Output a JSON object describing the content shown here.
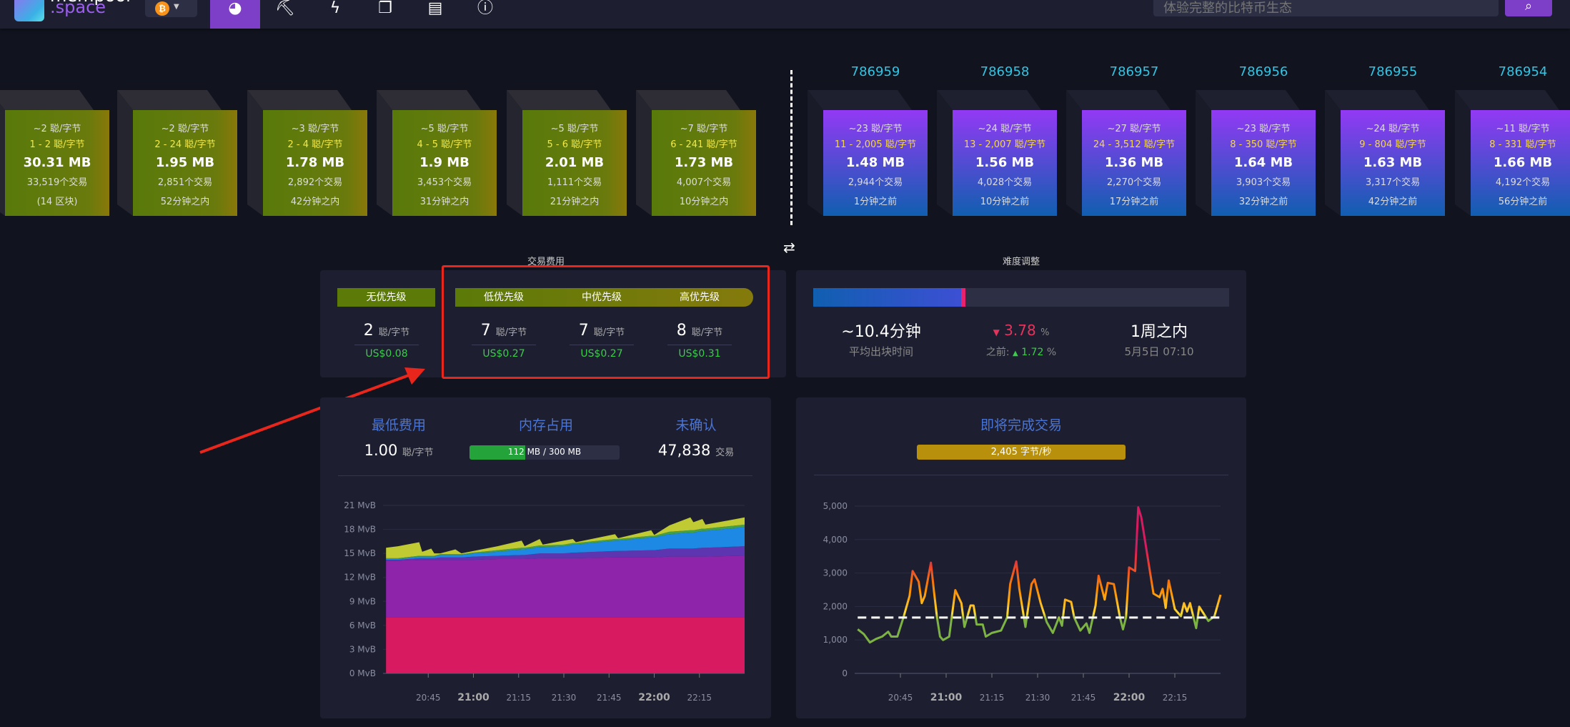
{
  "header": {
    "logo_top": "mempool",
    "logo_text": ".space",
    "network_icon": "bitcoin-icon",
    "nav": [
      {
        "icon": "dashboard-icon",
        "active": true
      },
      {
        "icon": "mining-icon"
      },
      {
        "icon": "lightning-icon"
      },
      {
        "icon": "blocks-icon"
      },
      {
        "icon": "docs-icon"
      },
      {
        "icon": "info-icon"
      }
    ],
    "search_placeholder": "体验完整的比特币生态",
    "search_icon": "search-icon"
  },
  "mempool_blocks": [
    {
      "median": "~2 聪/字节",
      "range": "1 - 2 聪/字节",
      "size": "30.31 MB",
      "txs": "33,519个交易",
      "eta": "(14 区块)"
    },
    {
      "median": "~2 聪/字节",
      "range": "2 - 24 聪/字节",
      "size": "1.95 MB",
      "txs": "2,851个交易",
      "eta": "52分钟之内"
    },
    {
      "median": "~3 聪/字节",
      "range": "2 - 4 聪/字节",
      "size": "1.78 MB",
      "txs": "2,892个交易",
      "eta": "42分钟之内"
    },
    {
      "median": "~5 聪/字节",
      "range": "4 - 5 聪/字节",
      "size": "1.9 MB",
      "txs": "3,453个交易",
      "eta": "31分钟之内"
    },
    {
      "median": "~5 聪/字节",
      "range": "5 - 6 聪/字节",
      "size": "2.01 MB",
      "txs": "1,111个交易",
      "eta": "21分钟之内"
    },
    {
      "median": "~7 聪/字节",
      "range": "6 - 241 聪/字节",
      "size": "1.73 MB",
      "txs": "4,007个交易",
      "eta": "10分钟之内"
    }
  ],
  "blocks": [
    {
      "height": "786959",
      "median": "~23 聪/字节",
      "range": "11 - 2,005 聪/字节",
      "size": "1.48 MB",
      "txs": "2,944个交易",
      "age": "1分钟之前"
    },
    {
      "height": "786958",
      "median": "~24 聪/字节",
      "range": "13 - 2,007 聪/字节",
      "size": "1.56 MB",
      "txs": "4,028个交易",
      "age": "10分钟之前"
    },
    {
      "height": "786957",
      "median": "~27 聪/字节",
      "range": "24 - 3,512 聪/字节",
      "size": "1.36 MB",
      "txs": "2,270个交易",
      "age": "17分钟之前"
    },
    {
      "height": "786956",
      "median": "~23 聪/字节",
      "range": "8 - 350 聪/字节",
      "size": "1.64 MB",
      "txs": "3,903个交易",
      "age": "32分钟之前"
    },
    {
      "height": "786955",
      "median": "~24 聪/字节",
      "range": "9 - 804 聪/字节",
      "size": "1.63 MB",
      "txs": "3,317个交易",
      "age": "42分钟之前"
    },
    {
      "height": "786954",
      "median": "~11 聪/字节",
      "range": "8 - 331 聪/字节",
      "size": "1.66 MB",
      "txs": "4,192个交易",
      "age": "56分钟之前"
    }
  ],
  "fees": {
    "title": "交易费用",
    "unit": "聪/字节",
    "items": [
      {
        "label": "无优先级",
        "value": "2",
        "usd": "US$0.08"
      },
      {
        "label": "低优先级",
        "value": "7",
        "usd": "US$0.27"
      },
      {
        "label": "中优先级",
        "value": "7",
        "usd": "US$0.27"
      },
      {
        "label": "高优先级",
        "value": "8",
        "usd": "US$0.31"
      }
    ]
  },
  "difficulty": {
    "title": "难度调整",
    "progress_pct": 36,
    "avg_block_time": "~10.4分钟",
    "avg_block_time_label": "平均出块时间",
    "change_arrow": "▼",
    "change": "3.78",
    "pct": "%",
    "previous_label": "之前:",
    "previous_arrow": "▲",
    "previous": "1.72",
    "eta": "1周之内",
    "eta_date": "5月5日 07:10"
  },
  "mempool_stats": {
    "min_fee_label": "最低费用",
    "min_fee": "1.00",
    "min_fee_unit": "聪/字节",
    "memory_label": "内存占用",
    "memory_text": "112 MB / 300 MB",
    "memory_used_mb": 112,
    "memory_total_mb": 300,
    "unconfirmed_label": "未确认",
    "unconfirmed": "47,838",
    "unconfirmed_unit": "交易"
  },
  "incoming": {
    "title": "即将完成交易",
    "rate": "2,405 字节/秒"
  },
  "chart_data": [
    {
      "type": "area",
      "stacked": true,
      "xlim": [
        "20:30",
        "22:30"
      ],
      "ylim": [
        0,
        21
      ],
      "y_ticks": [
        "0 MvB",
        "3 MvB",
        "6 MvB",
        "9 MvB",
        "12 MvB",
        "15 MvB",
        "18 MvB",
        "21 MvB"
      ],
      "x_ticks": [
        "20:45",
        "21:00",
        "21:15",
        "21:30",
        "21:45",
        "22:00",
        "22:15"
      ],
      "bold_ticks": [
        "21:00",
        "22:00"
      ],
      "x": [
        "20:31",
        "20:35",
        "20:42",
        "20:43",
        "20:46",
        "20:47",
        "20:49",
        "20:54",
        "20:56",
        "21:00",
        "21:08",
        "21:16",
        "21:17",
        "21:22",
        "21:23",
        "21:30",
        "21:33",
        "21:34",
        "21:47",
        "21:48",
        "21:59",
        "22:00",
        "22:05",
        "22:12",
        "22:13",
        "22:16",
        "22:17",
        "22:30"
      ],
      "series": [
        {
          "color": "#d81b60",
          "values": [
            7,
            7,
            7,
            7,
            7,
            7,
            7,
            7,
            7,
            7,
            7,
            7,
            7,
            7,
            7,
            7,
            7,
            7,
            7,
            7,
            7,
            7,
            7,
            7,
            7,
            7,
            7,
            7
          ]
        },
        {
          "color": "#8e24aa",
          "values": [
            7.1,
            7.1,
            7.2,
            7.2,
            7.2,
            7.2,
            7.2,
            7.2,
            7.2,
            7.2,
            7.3,
            7.3,
            7.3,
            7.4,
            7.4,
            7.4,
            7.4,
            7.4,
            7.5,
            7.5,
            7.5,
            7.5,
            7.6,
            7.6,
            7.6,
            7.6,
            7.6,
            7.7
          ]
        },
        {
          "color": "#5e35b1",
          "values": [
            0.1,
            0.1,
            0.2,
            0.2,
            0.2,
            0.2,
            0.3,
            0.3,
            0.3,
            0.4,
            0.4,
            0.5,
            0.5,
            0.6,
            0.6,
            0.6,
            0.7,
            0.7,
            0.8,
            0.8,
            0.9,
            0.9,
            1.0,
            1.0,
            1.0,
            1.1,
            1.1,
            1.2
          ]
        },
        {
          "color": "#1e88e5",
          "values": [
            0.1,
            0.1,
            0.2,
            0.2,
            0.2,
            0.2,
            0.3,
            0.3,
            0.3,
            0.4,
            0.5,
            0.7,
            0.7,
            0.8,
            0.8,
            0.9,
            1.0,
            1.0,
            1.3,
            1.3,
            1.6,
            1.6,
            1.8,
            2.0,
            2.0,
            2.1,
            2.1,
            2.4
          ]
        },
        {
          "color": "#43a047",
          "values": [
            0.1,
            0.1,
            0.1,
            0.1,
            0.1,
            0.1,
            0.1,
            0.1,
            0.1,
            0.1,
            0.2,
            0.2,
            0.2,
            0.2,
            0.2,
            0.2,
            0.2,
            0.2,
            0.2,
            0.2,
            0.2,
            0.2,
            0.3,
            0.3,
            0.3,
            0.3,
            0.3,
            0.3
          ]
        },
        {
          "color": "#c0ca33",
          "values": [
            1.3,
            1.5,
            1.7,
            0.5,
            0.9,
            0.3,
            0.1,
            0.6,
            0.1,
            0.2,
            0.5,
            0.9,
            0.2,
            0.8,
            0.1,
            0.5,
            0.5,
            0.1,
            0.6,
            0.1,
            0.7,
            0.1,
            0.8,
            1.6,
            1.0,
            1.2,
            0.5,
            0.9
          ]
        }
      ]
    },
    {
      "type": "line",
      "xlim": [
        "20:30",
        "22:30"
      ],
      "ylim": [
        0,
        5000
      ],
      "y_ticks": [
        "0",
        "1,000",
        "2,000",
        "3,000",
        "4,000",
        "5,000"
      ],
      "x_ticks": [
        "20:45",
        "21:00",
        "21:15",
        "21:30",
        "21:45",
        "22:00",
        "22:15"
      ],
      "bold_ticks": [
        "21:00",
        "22:00"
      ],
      "reference_line": 1670,
      "gradient_colors": [
        "#7cb342",
        "#fdd835",
        "#fb8c00",
        "#e53935",
        "#d81b60"
      ],
      "x": [
        "20:31",
        "20:33",
        "20:35",
        "20:37",
        "20:39",
        "20:41",
        "20:42",
        "20:44",
        "20:46",
        "20:48",
        "20:49",
        "20:51",
        "20:52",
        "20:53",
        "20:55",
        "20:56",
        "20:57",
        "20:58",
        "20:59",
        "21:01",
        "21:03",
        "21:05",
        "21:06",
        "21:08",
        "21:09",
        "21:10",
        "21:12",
        "21:13",
        "21:15",
        "21:18",
        "21:20",
        "21:21",
        "21:23",
        "21:24",
        "21:26",
        "21:28",
        "21:29",
        "21:31",
        "21:33",
        "21:35",
        "21:37",
        "21:38",
        "21:39",
        "21:41",
        "21:42",
        "21:44",
        "21:46",
        "21:47",
        "21:49",
        "21:50",
        "21:52",
        "21:53",
        "21:55",
        "21:57",
        "21:58",
        "21:59",
        "22:00",
        "22:02",
        "22:03",
        "22:04",
        "22:06",
        "22:08",
        "22:10",
        "22:11",
        "22:12",
        "22:13",
        "22:15",
        "22:17",
        "22:18",
        "22:19",
        "22:20",
        "22:22",
        "22:23",
        "22:26",
        "22:28",
        "22:30"
      ],
      "values": [
        1317,
        1175,
        925,
        1030,
        1100,
        1246,
        1100,
        1100,
        1673,
        2314,
        3060,
        2740,
        2100,
        2314,
        3310,
        2456,
        1673,
        1100,
        997,
        1100,
        2490,
        2100,
        1388,
        2030,
        2030,
        1460,
        1460,
        1100,
        1210,
        1280,
        1673,
        2670,
        3346,
        2528,
        1388,
        2670,
        2812,
        2100,
        1530,
        1210,
        1673,
        1424,
        2207,
        2136,
        1673,
        1280,
        1495,
        1210,
        2030,
        2920,
        2207,
        2705,
        2670,
        1673,
        1317,
        1673,
        3168,
        3060,
        4962,
        4664,
        3524,
        2385,
        2278,
        2528,
        1958,
        2777,
        1922,
        1709,
        2100,
        1850,
        2100,
        1353,
        1994,
        1566,
        1709,
        2350
      ]
    }
  ]
}
